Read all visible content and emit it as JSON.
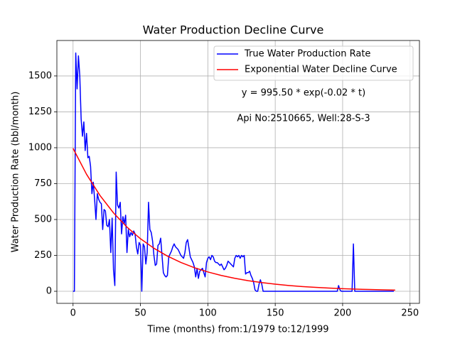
{
  "chart_data": {
    "type": "line",
    "title": "Water Production Decline Curve",
    "x_label": "Time (months) from:1/1979 to:12/1999",
    "y_label": "Water Production Rate (bbl/month)",
    "annotations": [
      "y = 995.50 * exp(-0.02 * t)",
      "Api No:2510665, Well:28-S-3"
    ],
    "xlim": [
      -12,
      257
    ],
    "ylim": [
      -84,
      1747
    ],
    "xticks": [
      0,
      50,
      100,
      150,
      200,
      250
    ],
    "yticks": [
      0,
      250,
      500,
      750,
      1000,
      1250,
      1500
    ],
    "grid": true,
    "legend": "upper right",
    "series": [
      {
        "name": "True Water Production Rate",
        "color": "#0000ff",
        "x": [
          0,
          1,
          2,
          3,
          4,
          5,
          6,
          7,
          8,
          9,
          10,
          11,
          12,
          13,
          14,
          15,
          16,
          17,
          18,
          19,
          20,
          21,
          22,
          23,
          24,
          25,
          26,
          27,
          28,
          29,
          30,
          31,
          32,
          33,
          34,
          35,
          36,
          37,
          38,
          39,
          40,
          41,
          42,
          43,
          44,
          45,
          46,
          47,
          48,
          49,
          50,
          51,
          52,
          53,
          54,
          55,
          56,
          57,
          58,
          59,
          60,
          61,
          62,
          63,
          64,
          65,
          66,
          67,
          68,
          69,
          70,
          71,
          72,
          73,
          74,
          75,
          76,
          77,
          78,
          79,
          80,
          81,
          82,
          83,
          84,
          85,
          86,
          87,
          88,
          89,
          90,
          91,
          92,
          93,
          94,
          95,
          96,
          97,
          98,
          99,
          100,
          101,
          102,
          103,
          104,
          105,
          106,
          107,
          108,
          109,
          110,
          111,
          112,
          113,
          114,
          115,
          116,
          117,
          118,
          119,
          120,
          121,
          122,
          123,
          124,
          125,
          126,
          127,
          128,
          129,
          130,
          131,
          132,
          133,
          134,
          135,
          136,
          137,
          138,
          139,
          140,
          141,
          142,
          143,
          144,
          145,
          146,
          147,
          148,
          149,
          150,
          151,
          152,
          153,
          154,
          155,
          156,
          157,
          158,
          159,
          160,
          161,
          162,
          163,
          164,
          165,
          166,
          167,
          168,
          169,
          170,
          171,
          172,
          173,
          174,
          175,
          176,
          177,
          178,
          179,
          180,
          181,
          182,
          183,
          184,
          185,
          186,
          187,
          188,
          189,
          190,
          191,
          192,
          193,
          194,
          195,
          196,
          197,
          198,
          199,
          200,
          201,
          202,
          203,
          204,
          205,
          206,
          207,
          208,
          209,
          210,
          211,
          212,
          213,
          214,
          215,
          216,
          217,
          218,
          219,
          220,
          221,
          222,
          223,
          224,
          225,
          226,
          227,
          228,
          229,
          230,
          231,
          232,
          233,
          234,
          235,
          236,
          237,
          238
        ],
        "values": [
          0,
          0,
          1660,
          1410,
          1640,
          1500,
          1200,
          1080,
          1180,
          980,
          1100,
          930,
          940,
          870,
          680,
          760,
          640,
          500,
          680,
          640,
          620,
          610,
          430,
          570,
          560,
          460,
          450,
          500,
          270,
          510,
          150,
          40,
          830,
          600,
          580,
          620,
          400,
          520,
          470,
          530,
          270,
          430,
          380,
          410,
          390,
          420,
          400,
          310,
          260,
          340,
          320,
          0,
          330,
          310,
          190,
          270,
          620,
          430,
          410,
          350,
          250,
          180,
          190,
          320,
          330,
          370,
          250,
          130,
          110,
          100,
          110,
          240,
          260,
          280,
          310,
          330,
          310,
          300,
          290,
          270,
          250,
          240,
          230,
          270,
          340,
          360,
          300,
          240,
          220,
          200,
          170,
          100,
          160,
          90,
          140,
          150,
          160,
          130,
          100,
          200,
          230,
          240,
          220,
          250,
          240,
          210,
          200,
          200,
          190,
          180,
          190,
          170,
          150,
          160,
          180,
          210,
          200,
          190,
          180,
          170,
          230,
          250,
          240,
          250,
          230,
          250,
          240,
          250,
          120,
          130,
          130,
          140,
          110,
          90,
          60,
          10,
          0,
          0,
          50,
          80,
          50,
          0,
          0,
          0,
          0,
          0,
          0,
          0,
          0,
          0,
          0,
          0,
          0,
          0,
          0,
          0,
          0,
          0,
          0,
          0,
          0,
          0,
          0,
          0,
          0,
          0,
          0,
          0,
          0,
          0,
          0,
          0,
          0,
          0,
          0,
          0,
          0,
          0,
          0,
          0,
          0,
          0,
          0,
          0,
          0,
          0,
          0,
          0,
          0,
          0,
          0,
          0,
          0,
          0,
          0,
          0,
          0,
          40,
          10,
          0,
          0,
          0,
          0,
          0,
          0,
          0,
          0,
          0,
          330,
          0,
          0,
          0,
          0,
          0,
          0,
          0,
          0,
          0,
          0,
          0,
          0,
          0,
          0,
          0,
          0,
          0,
          0,
          0,
          0,
          0,
          0,
          0,
          0,
          0,
          0,
          0,
          0,
          0,
          0
        ]
      },
      {
        "name": "Exponential Water Decline Curve",
        "color": "#ff0000",
        "x": [
          0,
          10,
          20,
          30,
          40,
          50,
          60,
          70,
          80,
          90,
          100,
          110,
          120,
          130,
          140,
          150,
          160,
          170,
          180,
          190,
          200,
          210,
          220,
          230,
          239
        ],
        "values": [
          995.5,
          815.0,
          667.3,
          546.3,
          447.3,
          366.2,
          299.8,
          245.5,
          201.0,
          164.5,
          134.7,
          110.3,
          90.3,
          73.9,
          60.5,
          49.6,
          40.6,
          33.2,
          27.2,
          22.3,
          18.2,
          14.9,
          12.2,
          10.0,
          8.4
        ]
      }
    ]
  }
}
